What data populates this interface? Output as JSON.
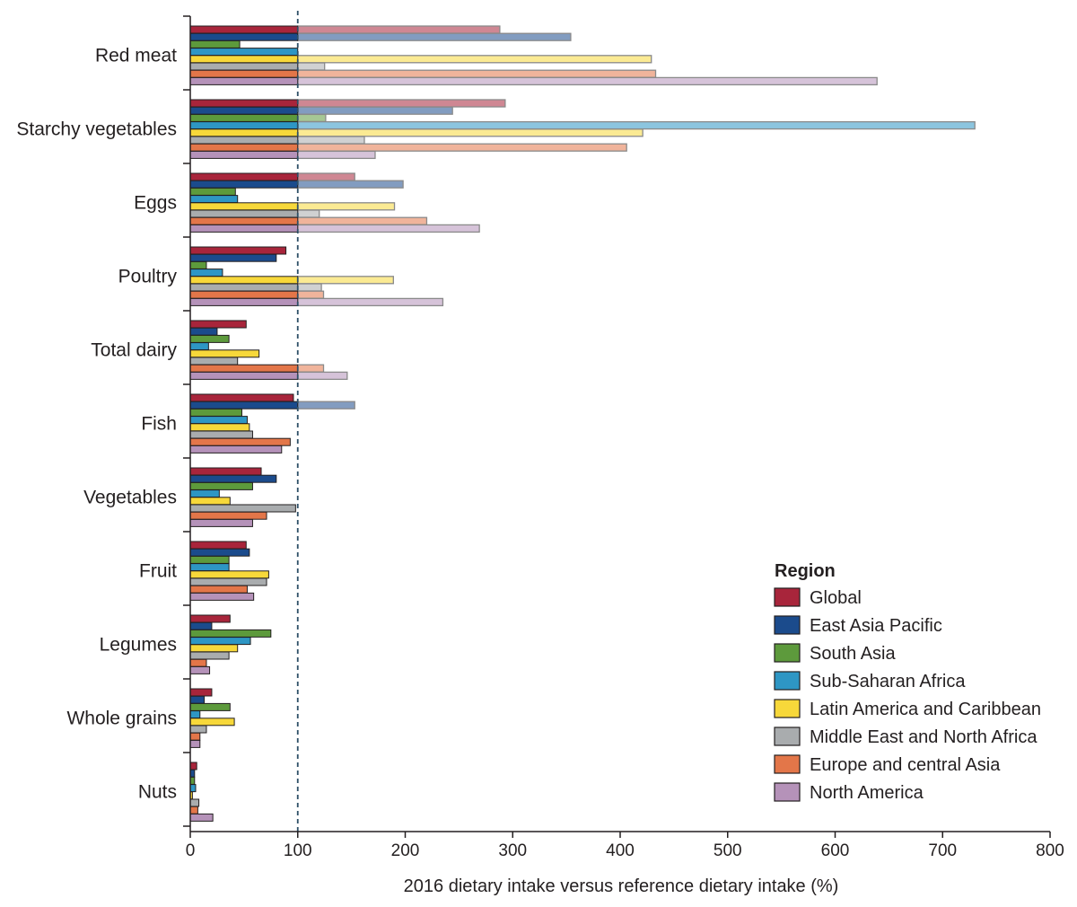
{
  "chart_data": {
    "type": "bar",
    "orientation": "horizontal",
    "xlabel": "2016 dietary intake versus reference dietary intake (%)",
    "xlim": [
      0,
      800
    ],
    "xticks": [
      0,
      100,
      200,
      300,
      400,
      500,
      600,
      700,
      800
    ],
    "reference_line": 100,
    "categories": [
      "Red meat",
      "Starchy vegetables",
      "Eggs",
      "Poultry",
      "Total dairy",
      "Fish",
      "Vegetables",
      "Fruit",
      "Legumes",
      "Whole grains",
      "Nuts"
    ],
    "legend_title": "Region",
    "legend_position": "bottom-right",
    "series": [
      {
        "name": "Global",
        "color": "#a8253b",
        "values": [
          288,
          293,
          153,
          89,
          52,
          96,
          66,
          52,
          37,
          20,
          6
        ]
      },
      {
        "name": "East Asia Pacific",
        "color": "#1b4b8c",
        "values": [
          354,
          244,
          198,
          80,
          25,
          153,
          80,
          55,
          20,
          13,
          4
        ]
      },
      {
        "name": "South Asia",
        "color": "#5d9a3c",
        "values": [
          46,
          126,
          42,
          15,
          36,
          48,
          58,
          36,
          75,
          37,
          4
        ]
      },
      {
        "name": "Sub-Saharan Africa",
        "color": "#2e96c4",
        "values": [
          100,
          730,
          44,
          30,
          17,
          53,
          27,
          36,
          56,
          9,
          5
        ]
      },
      {
        "name": "Latin America and Caribbean",
        "color": "#f7d83a",
        "values": [
          429,
          421,
          190,
          189,
          64,
          55,
          37,
          73,
          44,
          41,
          2
        ]
      },
      {
        "name": "Middle East and North Africa",
        "color": "#a9acae",
        "values": [
          125,
          162,
          120,
          122,
          44,
          58,
          98,
          71,
          36,
          15,
          8
        ]
      },
      {
        "name": "Europe and central  Asia",
        "color": "#e37649",
        "values": [
          433,
          406,
          220,
          124,
          124,
          93,
          71,
          53,
          15,
          9,
          7
        ]
      },
      {
        "name": "North America",
        "color": "#b592b9",
        "values": [
          639,
          172,
          269,
          235,
          146,
          85,
          58,
          59,
          18,
          9,
          21
        ]
      }
    ]
  }
}
